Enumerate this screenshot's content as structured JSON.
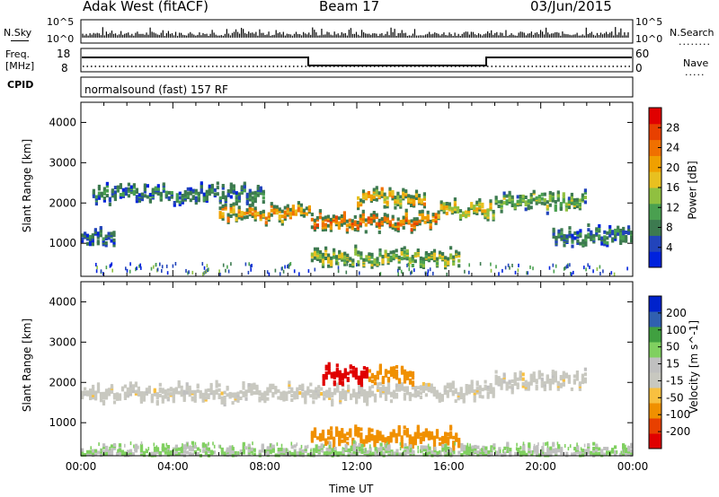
{
  "header": {
    "station": "Adak West (fitACF)",
    "beam": "Beam 17",
    "date": "03/Jun/2015"
  },
  "top_panels": {
    "nsky_label": "N.Sky",
    "nsky_ticks": [
      "10^5",
      "10^0"
    ],
    "nsearch_label": "N.Search",
    "nsearch_ticks": [
      "10^5",
      "10^0"
    ],
    "freq_label_line1": "Freq.",
    "freq_label_line2": "[MHz]",
    "freq_ticks": [
      "18",
      "8"
    ],
    "nave_label": "Nave",
    "nave_ticks": [
      "60",
      "0"
    ],
    "cpid_label": "CPID",
    "cpid_text": "normalsound (fast) 157 RF"
  },
  "legend_dots": {
    "nsearch": "........",
    "nave": "....."
  },
  "colors": {
    "power_scale": [
      "#0022dd",
      "#2244bb",
      "#3d7a50",
      "#4aa050",
      "#90c040",
      "#e8c020",
      "#f0a000",
      "#f07000",
      "#e84000",
      "#e00000"
    ],
    "velocity_scale": [
      "#e00000",
      "#e84000",
      "#f09000",
      "#f8c040",
      "#c8c8c0",
      "#c0c0c0",
      "#80d060",
      "#40a040",
      "#3060b0",
      "#0022cc"
    ],
    "ground_scatter": "#c0c0b8"
  },
  "chart_data": [
    {
      "type": "heatmap",
      "name": "power",
      "ylabel": "Slant Range [km]",
      "yticks": [
        "4000",
        "3000",
        "2000",
        "1000"
      ],
      "ylim": [
        180,
        4500
      ],
      "colorbar_label": "Power [dB]",
      "colorbar_ticks": [
        "28",
        "24",
        "20",
        "16",
        "12",
        "8",
        "4"
      ],
      "colorbar_range": [
        0,
        30
      ],
      "features": [
        {
          "x_start": 0.0,
          "x_end": 1.5,
          "range_center": 1250,
          "value": 6
        },
        {
          "x_start": 0.5,
          "x_end": 8.0,
          "range_center": 2300,
          "value": 8
        },
        {
          "x_start": 6.0,
          "x_end": 10.0,
          "range_center": 1800,
          "value": 20
        },
        {
          "x_start": 10.0,
          "x_end": 15.5,
          "range_center": 1600,
          "value": 22
        },
        {
          "x_start": 10.0,
          "x_end": 16.5,
          "range_center": 700,
          "value": 14
        },
        {
          "x_start": 12.0,
          "x_end": 15.0,
          "range_center": 2200,
          "value": 18
        },
        {
          "x_start": 15.5,
          "x_end": 18.0,
          "range_center": 1900,
          "value": 16
        },
        {
          "x_start": 18.0,
          "x_end": 22.0,
          "range_center": 2100,
          "value": 12
        },
        {
          "x_start": 20.5,
          "x_end": 24.0,
          "range_center": 1250,
          "value": 8
        }
      ]
    },
    {
      "type": "heatmap",
      "name": "velocity",
      "ylabel": "Slant Range [km]",
      "yticks": [
        "4000",
        "3000",
        "2000",
        "1000"
      ],
      "ylim": [
        180,
        4500
      ],
      "colorbar_label": "Velocity [m s^-1]",
      "colorbar_ticks": [
        "200",
        "100",
        "50",
        "15",
        "-15",
        "-50",
        "-100",
        "-200"
      ],
      "xlabel": "Time UT",
      "xticks": [
        "00:00",
        "04:00",
        "08:00",
        "12:00",
        "16:00",
        "20:00",
        "00:00"
      ],
      "features": [
        {
          "x_start": 0.0,
          "x_end": 18.0,
          "range_center": 1800,
          "value": 0
        },
        {
          "x_start": 10.5,
          "x_end": 12.5,
          "range_center": 2250,
          "value": -200
        },
        {
          "x_start": 12.5,
          "x_end": 14.5,
          "range_center": 2250,
          "value": -60
        },
        {
          "x_start": 10.0,
          "x_end": 16.5,
          "range_center": 700,
          "value": -40
        },
        {
          "x_start": 18.0,
          "x_end": 22.0,
          "range_center": 2100,
          "value": 0
        },
        {
          "x_start": 0.0,
          "x_end": 24.0,
          "range_center": 300,
          "value": 30
        }
      ]
    }
  ]
}
